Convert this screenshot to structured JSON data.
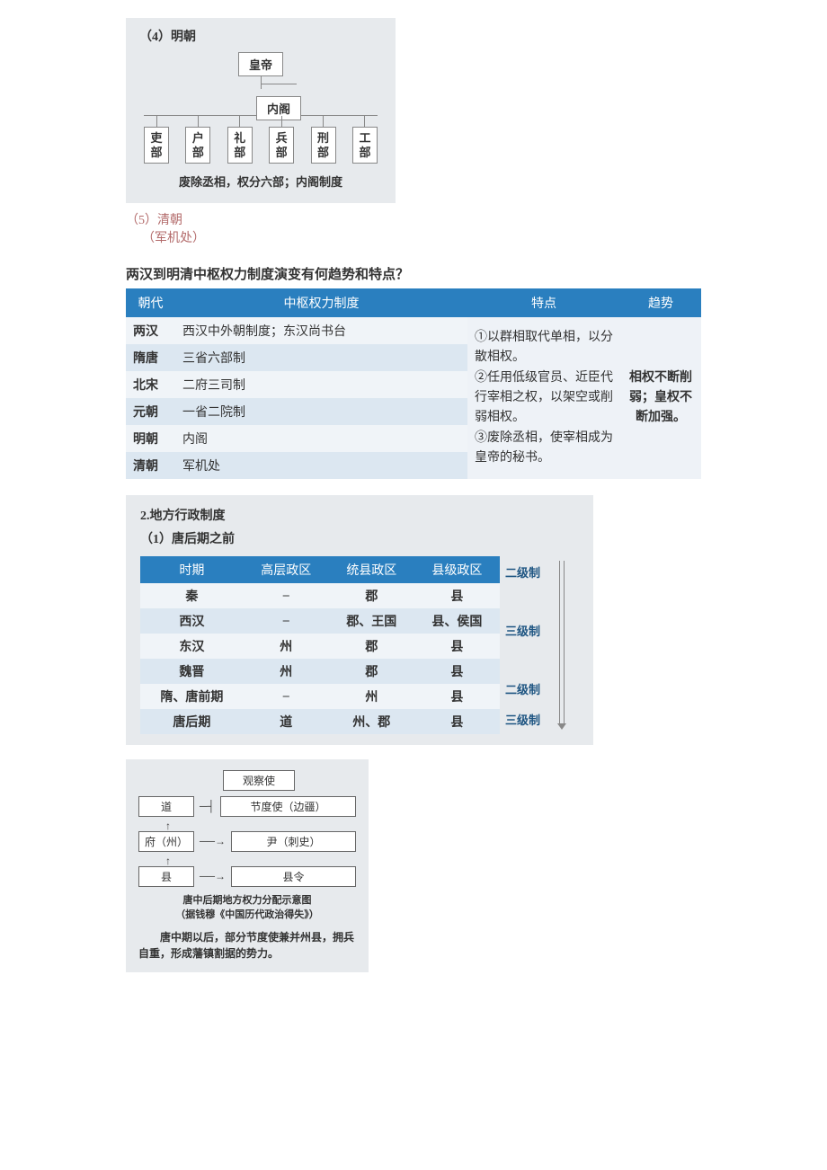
{
  "ming": {
    "section_label": "（4）明朝",
    "emperor": "皇帝",
    "neigeloc": "内阁",
    "departments": [
      "吏部",
      "户部",
      "礼部",
      "兵部",
      "刑部",
      "工部"
    ],
    "footer": "废除丞相，权分六部；内阁制度"
  },
  "qing": {
    "label": "（5）清朝",
    "value": "（军机处）"
  },
  "question": "两汉到明清中枢权力制度演变有何趋势和特点？",
  "table1": {
    "headers": [
      "朝代",
      "中枢权力制度",
      "特点",
      "趋势"
    ],
    "rows": [
      {
        "dyn": "两汉",
        "sys": "西汉中外朝制度；东汉尚书台"
      },
      {
        "dyn": "隋唐",
        "sys": "三省六部制"
      },
      {
        "dyn": "北宋",
        "sys": "二府三司制"
      },
      {
        "dyn": "元朝",
        "sys": "一省二院制"
      },
      {
        "dyn": "明朝",
        "sys": "内阁"
      },
      {
        "dyn": "清朝",
        "sys": "军机处"
      }
    ],
    "features": "①以群相取代单相，以分散相权。\n②任用低级官员、近臣代行宰相之权，以架空或削弱相权。\n③废除丞相，使宰相成为皇帝的秘书。",
    "trend": "相权不断削弱；皇权不断加强。"
  },
  "section2": {
    "heading": "2.地方行政制度",
    "sub": "（1）唐后期之前",
    "headers": [
      "时期",
      "高层政区",
      "统县政区",
      "县级政区"
    ],
    "rows": [
      {
        "period": "秦",
        "top": "–",
        "mid": "郡",
        "low": "县",
        "level": "二级制"
      },
      {
        "period": "西汉",
        "top": "–",
        "mid": "郡、王国",
        "low": "县、侯国",
        "level": ""
      },
      {
        "period": "东汉",
        "top": "州",
        "mid": "郡",
        "low": "县",
        "level": "三级制"
      },
      {
        "period": "魏晋",
        "top": "州",
        "mid": "郡",
        "low": "县",
        "level": ""
      },
      {
        "period": "隋、唐前期",
        "top": "–",
        "mid": "州",
        "low": "县",
        "level": "二级制"
      },
      {
        "period": "唐后期",
        "top": "道",
        "mid": "州、郡",
        "low": "县",
        "level": "三级制"
      }
    ]
  },
  "tang_diagram": {
    "nodes": {
      "dao": "道",
      "guancha": "观察使",
      "jiedu": "节度使（边疆）",
      "fuzhou": "府（州）",
      "yin": "尹（刺史）",
      "xian": "县",
      "xianling": "县令"
    },
    "caption": "唐中后期地方权力分配示意图\n（据钱穆《中国历代政治得失》）",
    "text": "唐中期以后，部分节度使兼并州县，拥兵自重，形成藩镇割据的势力。"
  }
}
